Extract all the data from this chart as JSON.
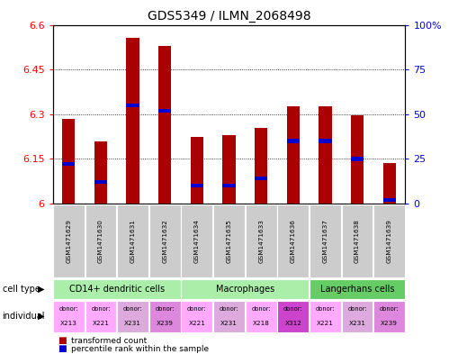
{
  "title": "GDS5349 / ILMN_2068498",
  "samples": [
    "GSM1471629",
    "GSM1471630",
    "GSM1471631",
    "GSM1471632",
    "GSM1471634",
    "GSM1471635",
    "GSM1471633",
    "GSM1471636",
    "GSM1471637",
    "GSM1471638",
    "GSM1471639"
  ],
  "transformed_count": [
    6.285,
    6.21,
    6.555,
    6.53,
    6.225,
    6.23,
    6.255,
    6.325,
    6.325,
    6.295,
    6.135
  ],
  "percentile_rank": [
    22,
    12,
    55,
    52,
    10,
    10,
    14,
    35,
    35,
    25,
    2
  ],
  "ylim_left": [
    6.0,
    6.6
  ],
  "ylim_right": [
    0,
    100
  ],
  "yticks_left": [
    6.0,
    6.15,
    6.3,
    6.45,
    6.6
  ],
  "yticks_right": [
    0,
    25,
    50,
    75,
    100
  ],
  "ytick_labels_left": [
    "6",
    "6.15",
    "6.3",
    "6.45",
    "6.6"
  ],
  "ytick_labels_right": [
    "0",
    "25",
    "50",
    "75",
    "100%"
  ],
  "cell_groups": [
    {
      "label": "CD14+ dendritic cells",
      "start": 0,
      "end": 3,
      "color": "#aaeeaa"
    },
    {
      "label": "Macrophages",
      "start": 4,
      "end": 7,
      "color": "#aaeeaa"
    },
    {
      "label": "Langerhans cells",
      "start": 8,
      "end": 10,
      "color": "#66cc66"
    }
  ],
  "individuals": [
    "X213",
    "X221",
    "X231",
    "X239",
    "X221",
    "X231",
    "X218",
    "X312",
    "X221",
    "X231",
    "X239"
  ],
  "ind_colors": [
    "#ffaaff",
    "#ffaaff",
    "#ddaadd",
    "#dd88dd",
    "#ffaaff",
    "#ddaadd",
    "#ffaaff",
    "#cc44cc",
    "#ffaaff",
    "#ddaadd",
    "#dd88dd"
  ],
  "bar_color": "#aa0000",
  "dot_color": "#0000cc",
  "sample_bg": "#cccccc",
  "background_color": "#ffffff"
}
